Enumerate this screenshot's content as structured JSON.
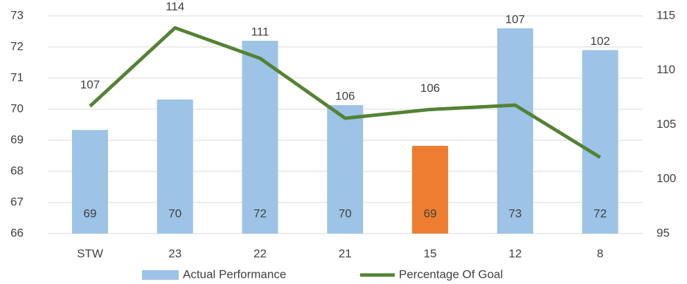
{
  "chart_data": {
    "type": "bar_line",
    "categories": [
      "STW",
      "23",
      "22",
      "21",
      "15",
      "12",
      "8"
    ],
    "series": [
      {
        "name": "Actual Performance",
        "type": "bar",
        "color": "#9dc3e6",
        "colors": [
          "#9dc3e6",
          "#9dc3e6",
          "#9dc3e6",
          "#9dc3e6",
          "#ed7d31",
          "#9dc3e6",
          "#9dc3e6"
        ],
        "values": [
          69.33,
          70.31,
          72.2,
          70.13,
          68.82,
          72.6,
          71.9
        ],
        "value_labels": [
          "69",
          "70",
          "72",
          "70",
          "69",
          "73",
          "72"
        ]
      },
      {
        "name": "Percentage Of Goal",
        "type": "line",
        "axis": "y2",
        "color": "#548235",
        "values": [
          106.7,
          113.9,
          111.1,
          105.6,
          106.4,
          106.8,
          102.0
        ],
        "value_labels": [
          "107",
          "114",
          "111",
          "106",
          "106",
          "107",
          "102"
        ]
      }
    ],
    "ylim": [
      66,
      73
    ],
    "yticks": [
      66,
      67,
      68,
      69,
      70,
      71,
      72,
      73
    ],
    "y2lim": [
      95,
      115
    ],
    "y2ticks": [
      95,
      100,
      105,
      110,
      115
    ],
    "grid": true,
    "legend": "bottom"
  }
}
